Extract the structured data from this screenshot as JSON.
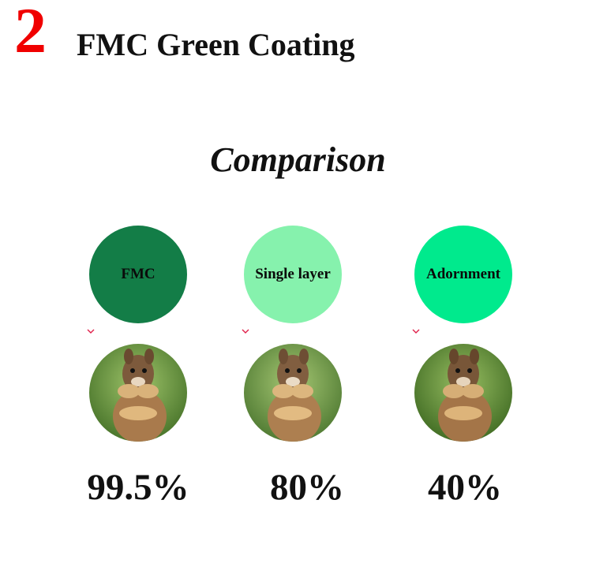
{
  "header": {
    "number": "2",
    "title": "FMC Green Coating"
  },
  "subtitle": "Comparison",
  "items": [
    {
      "label": "FMC",
      "color": "#137d47",
      "percent": "99.5%"
    },
    {
      "label": "Single layer",
      "color": "#86f2ad",
      "percent": "80%"
    },
    {
      "label": "Adornment",
      "color": "#00ea8d",
      "percent": "40%"
    }
  ],
  "colors": {
    "number": "#f00000",
    "arrow": "#e0204a"
  }
}
